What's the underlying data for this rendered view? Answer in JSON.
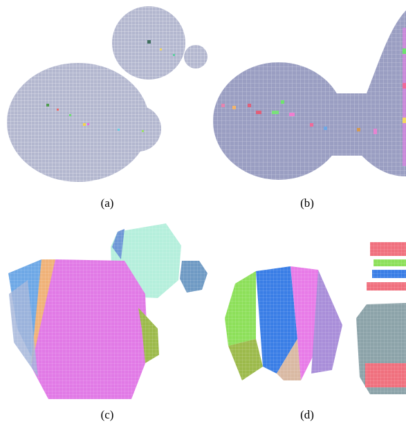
{
  "captions": {
    "a": "(a)",
    "b": "(b)",
    "c": "(c)",
    "d": "(d)"
  },
  "colors": {
    "blob_fill": "#b3b7cf",
    "blob_fill_b": "#9a9ec2",
    "grid_line": "#ffffff",
    "pink": "#f06aa6",
    "magenta": "#e87be8",
    "mint": "#b5efdc",
    "steel": "#6f9ac4",
    "lime": "#8de05a",
    "blue": "#3a7ee6",
    "olive": "#9cba4b",
    "tan": "#d9b9a3",
    "gray_teal": "#8ca3a9",
    "coral": "#f0707e"
  }
}
